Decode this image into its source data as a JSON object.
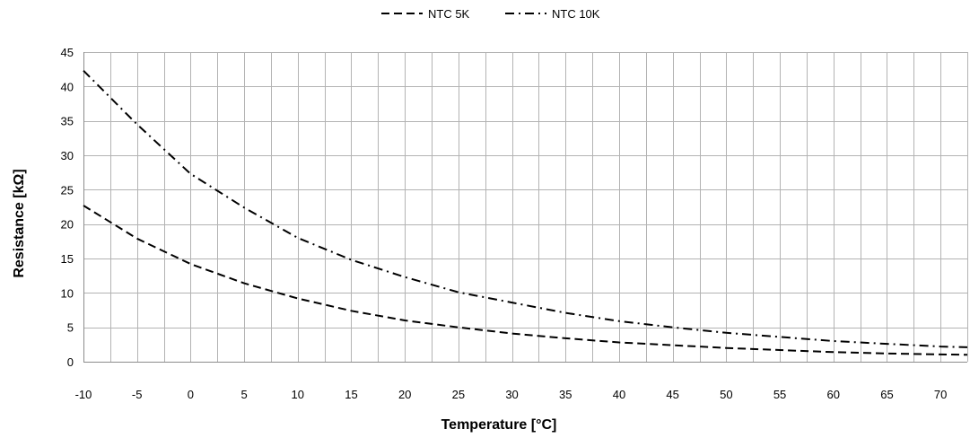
{
  "chart_data": {
    "type": "line",
    "title": "",
    "xlabel": "Temperature [°C]",
    "ylabel": "Resistance [kΩ]",
    "xlim": [
      -10,
      72.5
    ],
    "ylim": [
      0,
      45
    ],
    "xticks": [
      -10,
      -5,
      0,
      5,
      10,
      15,
      20,
      25,
      30,
      35,
      40,
      45,
      50,
      55,
      60,
      65,
      70
    ],
    "yticks": [
      0,
      5,
      10,
      15,
      20,
      25,
      30,
      35,
      40,
      45
    ],
    "x_minor_step": 2.5,
    "grid": true,
    "legend_position": "top-center",
    "series": [
      {
        "name": "NTC 5K",
        "line_style": "dashed",
        "color": "#000000",
        "x": [
          -10,
          -5,
          0,
          5,
          10,
          15,
          20,
          25,
          30,
          35,
          40,
          45,
          50,
          55,
          60,
          65,
          70,
          72.5
        ],
        "y": [
          22.7,
          17.9,
          14.2,
          11.4,
          9.2,
          7.4,
          6.0,
          5.0,
          4.1,
          3.4,
          2.8,
          2.4,
          2.0,
          1.7,
          1.4,
          1.2,
          1.05,
          1.0
        ]
      },
      {
        "name": "NTC 10K",
        "line_style": "dash-dot",
        "color": "#000000",
        "x": [
          -10,
          -5,
          0,
          5,
          10,
          15,
          20,
          25,
          30,
          35,
          40,
          45,
          50,
          55,
          60,
          65,
          70,
          72.5
        ],
        "y": [
          42.3,
          34.5,
          27.3,
          22.4,
          18.0,
          14.8,
          12.3,
          10.1,
          8.6,
          7.1,
          5.9,
          5.0,
          4.2,
          3.6,
          3.0,
          2.6,
          2.2,
          2.1
        ]
      }
    ]
  }
}
